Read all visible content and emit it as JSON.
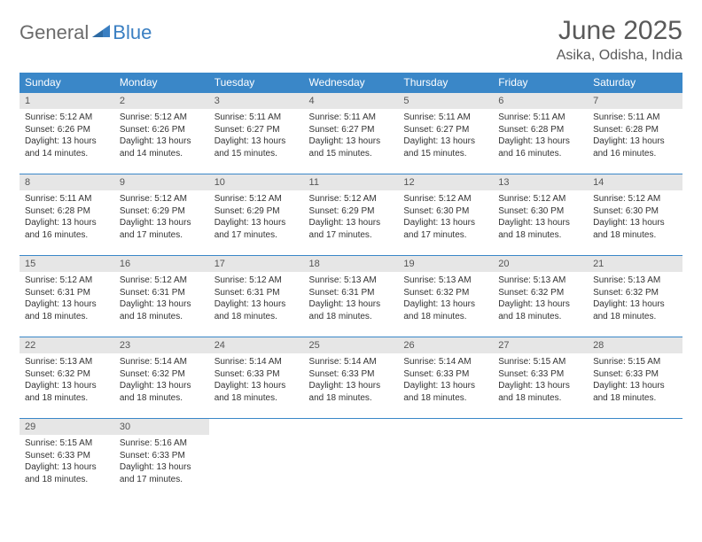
{
  "logo": {
    "word1": "General",
    "word2": "Blue"
  },
  "title": "June 2025",
  "location": "Asika, Odisha, India",
  "colors": {
    "header_bg": "#3a87c8",
    "header_text": "#ffffff",
    "daynum_bg": "#e6e6e6",
    "cell_border": "#3a87c8",
    "title_color": "#595959",
    "body_text": "#333333",
    "logo_gray": "#6b6b6b",
    "logo_blue": "#3a7fc2"
  },
  "typography": {
    "title_fontsize": 30,
    "location_fontsize": 16,
    "weekday_fontsize": 12,
    "daynum_fontsize": 11,
    "body_fontsize": 10
  },
  "weekdays": [
    "Sunday",
    "Monday",
    "Tuesday",
    "Wednesday",
    "Thursday",
    "Friday",
    "Saturday"
  ],
  "weeks": [
    [
      {
        "n": "1",
        "sr": "Sunrise: 5:12 AM",
        "ss": "Sunset: 6:26 PM",
        "d1": "Daylight: 13 hours",
        "d2": "and 14 minutes."
      },
      {
        "n": "2",
        "sr": "Sunrise: 5:12 AM",
        "ss": "Sunset: 6:26 PM",
        "d1": "Daylight: 13 hours",
        "d2": "and 14 minutes."
      },
      {
        "n": "3",
        "sr": "Sunrise: 5:11 AM",
        "ss": "Sunset: 6:27 PM",
        "d1": "Daylight: 13 hours",
        "d2": "and 15 minutes."
      },
      {
        "n": "4",
        "sr": "Sunrise: 5:11 AM",
        "ss": "Sunset: 6:27 PM",
        "d1": "Daylight: 13 hours",
        "d2": "and 15 minutes."
      },
      {
        "n": "5",
        "sr": "Sunrise: 5:11 AM",
        "ss": "Sunset: 6:27 PM",
        "d1": "Daylight: 13 hours",
        "d2": "and 15 minutes."
      },
      {
        "n": "6",
        "sr": "Sunrise: 5:11 AM",
        "ss": "Sunset: 6:28 PM",
        "d1": "Daylight: 13 hours",
        "d2": "and 16 minutes."
      },
      {
        "n": "7",
        "sr": "Sunrise: 5:11 AM",
        "ss": "Sunset: 6:28 PM",
        "d1": "Daylight: 13 hours",
        "d2": "and 16 minutes."
      }
    ],
    [
      {
        "n": "8",
        "sr": "Sunrise: 5:11 AM",
        "ss": "Sunset: 6:28 PM",
        "d1": "Daylight: 13 hours",
        "d2": "and 16 minutes."
      },
      {
        "n": "9",
        "sr": "Sunrise: 5:12 AM",
        "ss": "Sunset: 6:29 PM",
        "d1": "Daylight: 13 hours",
        "d2": "and 17 minutes."
      },
      {
        "n": "10",
        "sr": "Sunrise: 5:12 AM",
        "ss": "Sunset: 6:29 PM",
        "d1": "Daylight: 13 hours",
        "d2": "and 17 minutes."
      },
      {
        "n": "11",
        "sr": "Sunrise: 5:12 AM",
        "ss": "Sunset: 6:29 PM",
        "d1": "Daylight: 13 hours",
        "d2": "and 17 minutes."
      },
      {
        "n": "12",
        "sr": "Sunrise: 5:12 AM",
        "ss": "Sunset: 6:30 PM",
        "d1": "Daylight: 13 hours",
        "d2": "and 17 minutes."
      },
      {
        "n": "13",
        "sr": "Sunrise: 5:12 AM",
        "ss": "Sunset: 6:30 PM",
        "d1": "Daylight: 13 hours",
        "d2": "and 18 minutes."
      },
      {
        "n": "14",
        "sr": "Sunrise: 5:12 AM",
        "ss": "Sunset: 6:30 PM",
        "d1": "Daylight: 13 hours",
        "d2": "and 18 minutes."
      }
    ],
    [
      {
        "n": "15",
        "sr": "Sunrise: 5:12 AM",
        "ss": "Sunset: 6:31 PM",
        "d1": "Daylight: 13 hours",
        "d2": "and 18 minutes."
      },
      {
        "n": "16",
        "sr": "Sunrise: 5:12 AM",
        "ss": "Sunset: 6:31 PM",
        "d1": "Daylight: 13 hours",
        "d2": "and 18 minutes."
      },
      {
        "n": "17",
        "sr": "Sunrise: 5:12 AM",
        "ss": "Sunset: 6:31 PM",
        "d1": "Daylight: 13 hours",
        "d2": "and 18 minutes."
      },
      {
        "n": "18",
        "sr": "Sunrise: 5:13 AM",
        "ss": "Sunset: 6:31 PM",
        "d1": "Daylight: 13 hours",
        "d2": "and 18 minutes."
      },
      {
        "n": "19",
        "sr": "Sunrise: 5:13 AM",
        "ss": "Sunset: 6:32 PM",
        "d1": "Daylight: 13 hours",
        "d2": "and 18 minutes."
      },
      {
        "n": "20",
        "sr": "Sunrise: 5:13 AM",
        "ss": "Sunset: 6:32 PM",
        "d1": "Daylight: 13 hours",
        "d2": "and 18 minutes."
      },
      {
        "n": "21",
        "sr": "Sunrise: 5:13 AM",
        "ss": "Sunset: 6:32 PM",
        "d1": "Daylight: 13 hours",
        "d2": "and 18 minutes."
      }
    ],
    [
      {
        "n": "22",
        "sr": "Sunrise: 5:13 AM",
        "ss": "Sunset: 6:32 PM",
        "d1": "Daylight: 13 hours",
        "d2": "and 18 minutes."
      },
      {
        "n": "23",
        "sr": "Sunrise: 5:14 AM",
        "ss": "Sunset: 6:32 PM",
        "d1": "Daylight: 13 hours",
        "d2": "and 18 minutes."
      },
      {
        "n": "24",
        "sr": "Sunrise: 5:14 AM",
        "ss": "Sunset: 6:33 PM",
        "d1": "Daylight: 13 hours",
        "d2": "and 18 minutes."
      },
      {
        "n": "25",
        "sr": "Sunrise: 5:14 AM",
        "ss": "Sunset: 6:33 PM",
        "d1": "Daylight: 13 hours",
        "d2": "and 18 minutes."
      },
      {
        "n": "26",
        "sr": "Sunrise: 5:14 AM",
        "ss": "Sunset: 6:33 PM",
        "d1": "Daylight: 13 hours",
        "d2": "and 18 minutes."
      },
      {
        "n": "27",
        "sr": "Sunrise: 5:15 AM",
        "ss": "Sunset: 6:33 PM",
        "d1": "Daylight: 13 hours",
        "d2": "and 18 minutes."
      },
      {
        "n": "28",
        "sr": "Sunrise: 5:15 AM",
        "ss": "Sunset: 6:33 PM",
        "d1": "Daylight: 13 hours",
        "d2": "and 18 minutes."
      }
    ],
    [
      {
        "n": "29",
        "sr": "Sunrise: 5:15 AM",
        "ss": "Sunset: 6:33 PM",
        "d1": "Daylight: 13 hours",
        "d2": "and 18 minutes."
      },
      {
        "n": "30",
        "sr": "Sunrise: 5:16 AM",
        "ss": "Sunset: 6:33 PM",
        "d1": "Daylight: 13 hours",
        "d2": "and 17 minutes."
      },
      {
        "empty": true
      },
      {
        "empty": true
      },
      {
        "empty": true
      },
      {
        "empty": true
      },
      {
        "empty": true
      }
    ]
  ]
}
